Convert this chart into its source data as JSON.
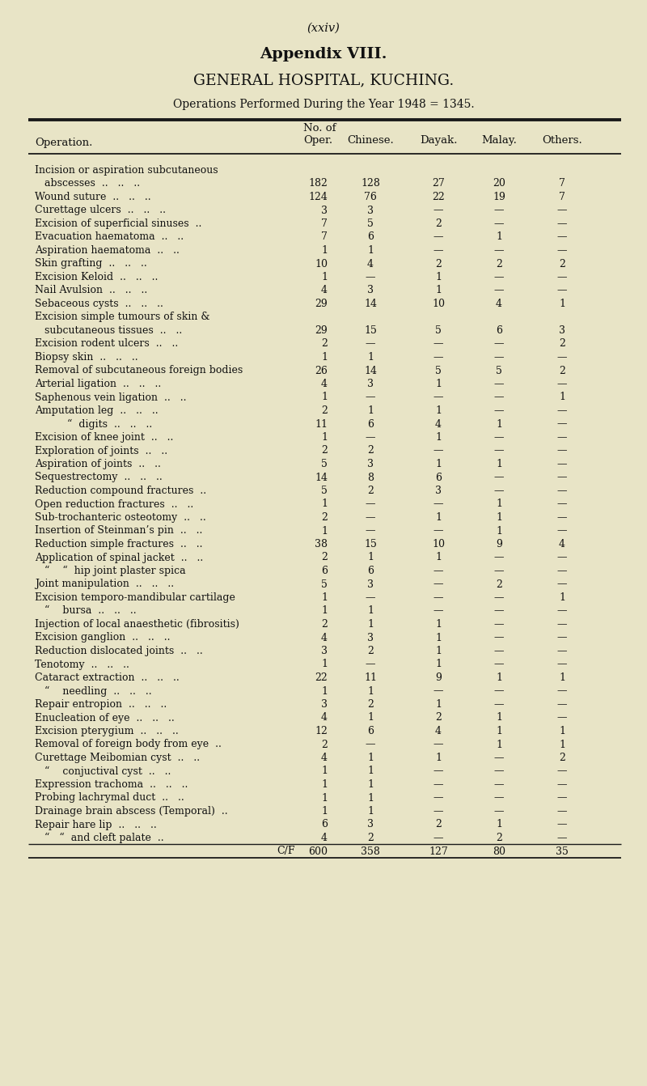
{
  "page_num": "(xxiv)",
  "title1": "Appendix VIII.",
  "title2": "GENERAL HOSPITAL, KUCHING.",
  "subtitle": "Operations Performed During the Year 1948 = 1345.",
  "bg_color": "#e8e4c6",
  "rows": [
    [
      "Incision or aspiration subcutaneous",
      "",
      "",
      "",
      "",
      ""
    ],
    [
      "   abscesses  ..   ..   ..",
      "182",
      "128",
      "27",
      "20",
      "7"
    ],
    [
      "Wound suture  ..   ..   ..",
      "124",
      "76",
      "22",
      "19",
      "7"
    ],
    [
      "Curettage ulcers  ..   ..   ..",
      "3",
      "3",
      "—",
      "—",
      "—"
    ],
    [
      "Excision of superficial sinuses  ..",
      "7",
      "5",
      "2",
      "—",
      "—"
    ],
    [
      "Evacuation haematoma  ..   ..",
      "7",
      "6",
      "—",
      "1",
      "—"
    ],
    [
      "Aspiration haematoma  ..   ..",
      "1",
      "1",
      "—",
      "—",
      "—"
    ],
    [
      "Skin grafting  ..   ..   ..",
      "10",
      "4",
      "2",
      "2",
      "2"
    ],
    [
      "Excision Keloid  ..   ..   ..",
      "1",
      "—",
      "1",
      "—",
      "—"
    ],
    [
      "Nail Avulsion  ..   ..   ..",
      "4",
      "3",
      "1",
      "—",
      "—"
    ],
    [
      "Sebaceous cysts  ..   ..   ..",
      "29",
      "14",
      "10",
      "4",
      "1"
    ],
    [
      "Excision simple tumours of skin &",
      "",
      "",
      "",
      "",
      ""
    ],
    [
      "   subcutaneous tissues  ..   ..",
      "29",
      "15",
      "5",
      "6",
      "3"
    ],
    [
      "Excision rodent ulcers  ..   ..",
      "2",
      "—",
      "—",
      "—",
      "2"
    ],
    [
      "Biopsy skin  ..   ..   ..",
      "1",
      "1",
      "—",
      "—",
      "—"
    ],
    [
      "Removal of subcutaneous foreign bodies",
      "26",
      "14",
      "5",
      "5",
      "2"
    ],
    [
      "Arterial ligation  ..   ..   ..",
      "4",
      "3",
      "1",
      "—",
      "—"
    ],
    [
      "Saphenous vein ligation  ..   ..",
      "1",
      "—",
      "—",
      "—",
      "1"
    ],
    [
      "Amputation leg  ..   ..   ..",
      "2",
      "1",
      "1",
      "—",
      "—"
    ],
    [
      "          “  digits  ..   ..   ..",
      "11",
      "6",
      "4",
      "1",
      "—"
    ],
    [
      "Excision of knee joint  ..   ..",
      "1",
      "—",
      "1",
      "—",
      "—"
    ],
    [
      "Exploration of joints  ..   ..",
      "2",
      "2",
      "—",
      "—",
      "—"
    ],
    [
      "Aspiration of joints  ..   ..",
      "5",
      "3",
      "1",
      "1",
      "—"
    ],
    [
      "Sequestrectomy  ..   ..   ..",
      "14",
      "8",
      "6",
      "—",
      "—"
    ],
    [
      "Reduction compound fractures  ..",
      "5",
      "2",
      "3",
      "—",
      "—"
    ],
    [
      "Open reduction fractures  ..   ..",
      "1",
      "—",
      "—",
      "1",
      "—"
    ],
    [
      "Sub-trochanteric osteotomy  ..   ..",
      "2",
      "—",
      "1",
      "1",
      "—"
    ],
    [
      "Insertion of Steinman’s pin  ..   ..",
      "1",
      "—",
      "—",
      "1",
      "—"
    ],
    [
      "Reduction simple fractures  ..   ..",
      "38",
      "15",
      "10",
      "9",
      "4"
    ],
    [
      "Application of spinal jacket  ..   ..",
      "2",
      "1",
      "1",
      "—",
      "—"
    ],
    [
      "   “    “  hip joint plaster spica",
      "6",
      "6",
      "—",
      "—",
      "—"
    ],
    [
      "Joint manipulation  ..   ..   ..",
      "5",
      "3",
      "—",
      "2",
      "—"
    ],
    [
      "Excision temporo-mandibular cartilage",
      "1",
      "—",
      "—",
      "—",
      "1"
    ],
    [
      "   “    bursa  ..   ..   ..",
      "1",
      "1",
      "—",
      "—",
      "—"
    ],
    [
      "Injection of local anaesthetic (fibrositis)",
      "2",
      "1",
      "1",
      "—",
      "—"
    ],
    [
      "Excision ganglion  ..   ..   ..",
      "4",
      "3",
      "1",
      "—",
      "—"
    ],
    [
      "Reduction dislocated joints  ..   ..",
      "3",
      "2",
      "1",
      "—",
      "—"
    ],
    [
      "Tenotomy  ..   ..   ..",
      "1",
      "—",
      "1",
      "—",
      "—"
    ],
    [
      "Cataract extraction  ..   ..   ..",
      "22",
      "11",
      "9",
      "1",
      "1"
    ],
    [
      "   “    needling  ..   ..   ..",
      "1",
      "1",
      "—",
      "—",
      "—"
    ],
    [
      "Repair entropion  ..   ..   ..",
      "3",
      "2",
      "1",
      "—",
      "—"
    ],
    [
      "Enucleation of eye  ..   ..   ..",
      "4",
      "1",
      "2",
      "1",
      "—"
    ],
    [
      "Excision pterygium  ..   ..   ..",
      "12",
      "6",
      "4",
      "1",
      "1"
    ],
    [
      "Removal of foreign body from eye  ..",
      "2",
      "—",
      "—",
      "1",
      "1"
    ],
    [
      "Curettage Meibomian cyst  ..   ..",
      "4",
      "1",
      "1",
      "—",
      "2"
    ],
    [
      "   “    conjuctival cyst  ..   ..",
      "1",
      "1",
      "—",
      "—",
      "—"
    ],
    [
      "Expression trachoma  ..   ..   ..",
      "1",
      "1",
      "—",
      "—",
      "—"
    ],
    [
      "Probing lachrymal duct  ..   ..",
      "1",
      "1",
      "—",
      "—",
      "—"
    ],
    [
      "Drainage brain abscess (Temporal)  ..",
      "1",
      "1",
      "—",
      "—",
      "—"
    ],
    [
      "Repair hare lip  ..   ..   ..",
      "6",
      "3",
      "2",
      "1",
      "—"
    ],
    [
      "   “   “  and cleft palate  ..",
      "4",
      "2",
      "—",
      "2",
      "—"
    ],
    [
      "C/F",
      "600",
      "358",
      "127",
      "80",
      "35"
    ]
  ]
}
